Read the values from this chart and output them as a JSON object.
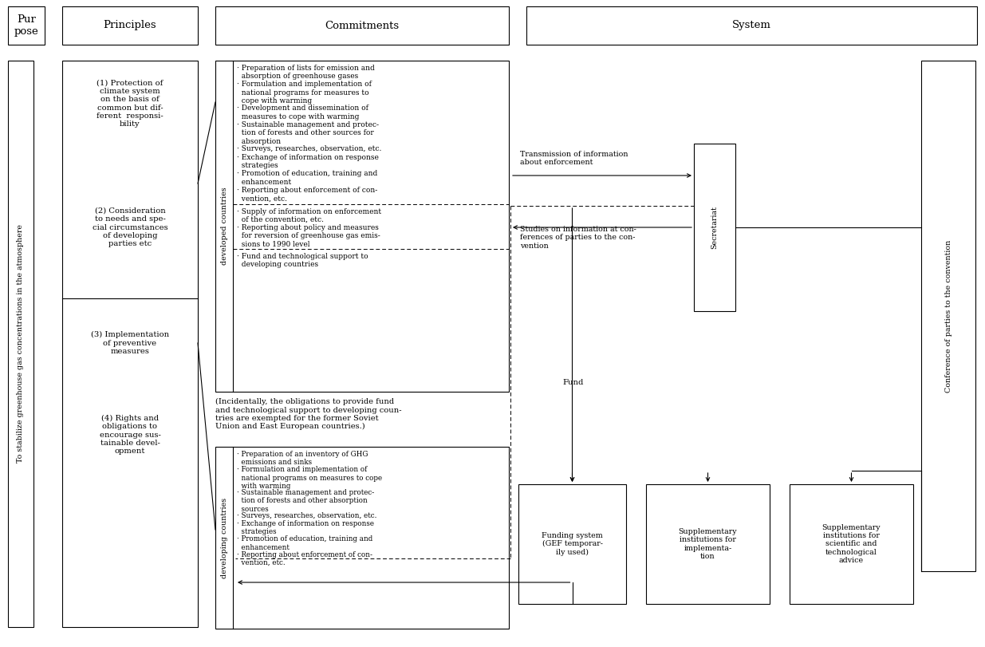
{
  "bg_color": "#ffffff",
  "purpose_header": "Pur\npose",
  "principles_header": "Principles",
  "commitments_header": "Commitments",
  "system_header": "System",
  "purpose_text": "To stabilize greenhouse gas concentrations in the atmosphere",
  "principles": [
    "(1) Protection of\nclimate system\non the basis of\ncommon but dif-\nferent  responsi-\nbility",
    "(2) Consideration\nto needs and spe-\ncial circumstances\nof developing\nparties etc",
    "(3) Implementation\nof preventive\nmeasures",
    "(4) Rights and\nobligations to\nencourage sus-\ntainable devel-\nopment"
  ],
  "developed_label": "developed countries",
  "developing_label": "developing countries",
  "developed_items_top": [
    "· Preparation of lists for emission and\n  absorption of greenhouse gases",
    "· Formulation and implementation of\n  national programs for measures to\n  cope with warming",
    "· Development and dissemination of\n  measures to cope with warming",
    "· Sustainable management and protec-\n  tion of forests and other sources for\n  absorption",
    "· Surveys, researches, observation, etc.",
    "· Exchange of information on response\n  strategies",
    "· Promotion of education, training and\n  enhancement",
    "· Reporting about enforcement of con-\n  vention, etc."
  ],
  "developed_items_mid": [
    "· Supply of information on enforcement\n  of the convention, etc.",
    "· Reporting about policy and measures\n  for reversion of greenhouse gas emis-\n  sions to 1990 level"
  ],
  "developed_items_bot": [
    "· Fund and technological support to\n  developing countries"
  ],
  "incidentally_text": "(Incidentally, the obligations to provide fund\nand technological support to developing coun-\ntries are exempted for the former Soviet\nUnion and East European countries.)",
  "developing_items": [
    "· Preparation of an inventory of GHG\n  emissions and sinks",
    "· Formulation and implementation of\n  national programs on measures to cope\n  with warming",
    "· Sustainable management and protec-\n  tion of forests and other absorption\n  sources",
    "· Surveys, researches, observation, etc.",
    "· Exchange of information on response\n  strategies",
    "· Promotion of education, training and\n  enhancement",
    "· Reporting about enforcement of con-\n  vention, etc."
  ],
  "transmission_text": "Transmission of information\nabout enforcement",
  "studies_text": "Studies on information at con-\nferences of parties to the con-\nvention",
  "fund_text": "Fund",
  "secretariat_text": "Secretariat",
  "conf_parties_text": "Conference of parties to the convention",
  "funding_system_text": "Funding system\n(GEF temporar-\nily used)",
  "supp_impl_text": "Supplementary\ninstitutions for\nimplementa-\ntion",
  "supp_sci_text": "Supplementary\ninstitutions for\nscientific and\ntechnological\nadvice"
}
